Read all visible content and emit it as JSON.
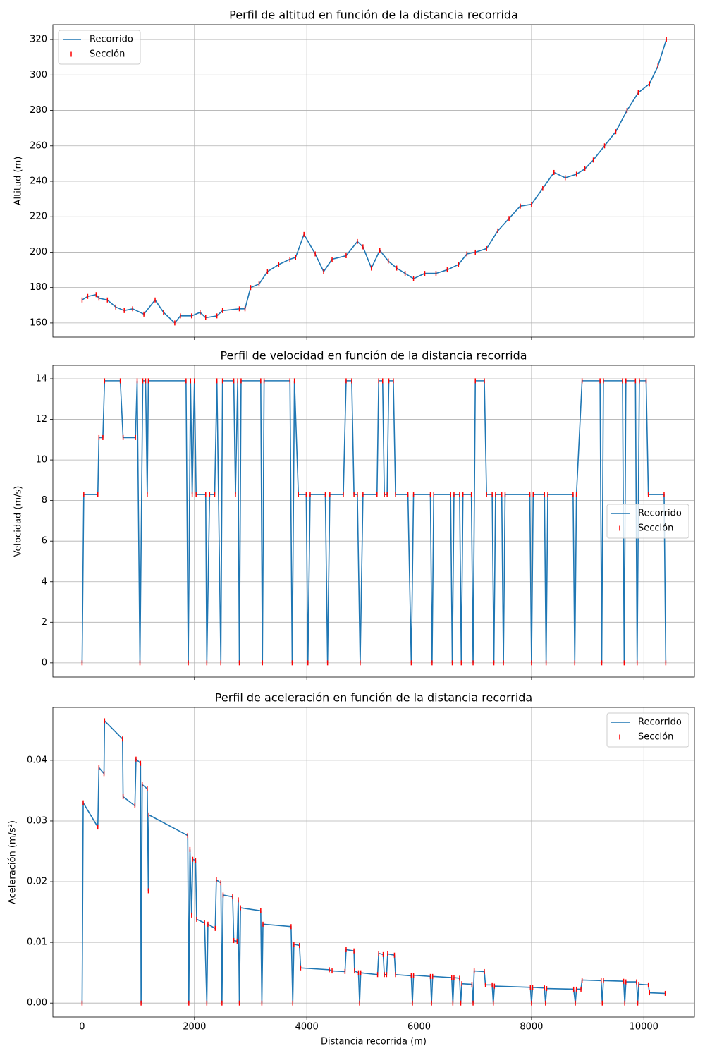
{
  "chart_data": [
    {
      "type": "line",
      "title": "Perfil de altitud en función de la distancia recorrida",
      "ylabel": "Altitud (m)",
      "x": [
        0,
        100,
        250,
        300,
        450,
        600,
        750,
        900,
        1100,
        1300,
        1450,
        1650,
        1750,
        1950,
        2100,
        2200,
        2400,
        2500,
        2800,
        2900,
        3000,
        3150,
        3300,
        3500,
        3700,
        3800,
        3950,
        4150,
        4300,
        4450,
        4700,
        4900,
        5000,
        5150,
        5300,
        5450,
        5600,
        5750,
        5900,
        6100,
        6300,
        6500,
        6700,
        6850,
        7000,
        7200,
        7400,
        7600,
        7800,
        8000,
        8200,
        8400,
        8600,
        8800,
        8950,
        9100,
        9300,
        9500,
        9700,
        9900,
        10100,
        10250,
        10400
      ],
      "series": [
        {
          "name": "Recorrido",
          "color": "#1f77b4",
          "values": [
            173,
            175,
            176,
            174,
            173,
            169,
            167,
            168,
            165,
            173,
            166,
            160,
            164,
            164,
            166,
            163,
            164,
            167,
            168,
            168,
            180,
            182,
            189,
            193,
            196,
            197,
            210,
            199,
            189,
            196,
            198,
            206,
            203,
            191,
            201,
            195,
            191,
            188,
            185,
            188,
            188,
            190,
            193,
            199,
            200,
            202,
            212,
            219,
            226,
            227,
            236,
            245,
            242,
            244,
            247,
            252,
            260,
            268,
            280,
            290,
            295,
            305,
            320
          ]
        },
        {
          "name": "Sección",
          "color": "#ff0000",
          "kind": "scatter",
          "values": [
            173,
            175,
            176,
            174,
            173,
            169,
            167,
            168,
            165,
            173,
            166,
            160,
            164,
            164,
            166,
            163,
            164,
            167,
            168,
            168,
            180,
            182,
            189,
            193,
            196,
            197,
            210,
            199,
            189,
            196,
            198,
            206,
            203,
            191,
            201,
            195,
            191,
            188,
            185,
            188,
            188,
            190,
            193,
            199,
            200,
            202,
            212,
            219,
            226,
            227,
            236,
            245,
            242,
            244,
            247,
            252,
            260,
            268,
            280,
            290,
            295,
            305,
            320
          ]
        }
      ],
      "xlim": [
        -520,
        10900
      ],
      "ylim": [
        152,
        328.4
      ],
      "xticks": [
        0,
        2000,
        4000,
        6000,
        8000,
        10000
      ],
      "yticks": [
        160,
        180,
        200,
        220,
        240,
        260,
        280,
        300,
        320
      ],
      "xticklabels": false,
      "grid": true,
      "legend": "upper left"
    },
    {
      "type": "line",
      "title": "Perfil de velocidad en función de la distancia recorrida",
      "ylabel": "Velocidad (m/s)",
      "x": [
        0,
        30,
        280,
        300,
        370,
        400,
        680,
        730,
        950,
        980,
        1030,
        1080,
        1130,
        1160,
        1180,
        1850,
        1890,
        1930,
        1960,
        2000,
        2030,
        2200,
        2220,
        2270,
        2360,
        2400,
        2470,
        2500,
        2700,
        2730,
        2770,
        2800,
        2830,
        3180,
        3210,
        3240,
        3700,
        3740,
        3780,
        3850,
        3990,
        4020,
        4060,
        4330,
        4370,
        4410,
        4650,
        4700,
        4800,
        4840,
        4900,
        4950,
        5000,
        5250,
        5280,
        5350,
        5380,
        5430,
        5460,
        5540,
        5580,
        5800,
        5860,
        5900,
        6200,
        6230,
        6260,
        6560,
        6590,
        6620,
        6720,
        6750,
        6780,
        6930,
        6960,
        7000,
        7160,
        7200,
        7300,
        7330,
        7360,
        7470,
        7500,
        7530,
        7970,
        8000,
        8030,
        8230,
        8260,
        8290,
        8740,
        8770,
        8800,
        8900,
        9220,
        9250,
        9280,
        9620,
        9650,
        9680,
        9850,
        9880,
        9920,
        10040,
        10080,
        10360,
        10390
      ],
      "series": [
        {
          "name": "Recorrido",
          "color": "#1f77b4",
          "values": [
            0,
            8.3,
            8.3,
            11.1,
            11.1,
            13.9,
            13.9,
            11.1,
            11.1,
            13.9,
            0,
            13.9,
            13.9,
            8.3,
            13.9,
            13.9,
            0,
            13.9,
            8.3,
            13.9,
            8.3,
            8.3,
            0,
            8.3,
            8.3,
            13.9,
            0,
            13.9,
            13.9,
            8.3,
            13.9,
            0,
            13.9,
            13.9,
            0,
            13.9,
            13.9,
            0,
            13.9,
            8.3,
            8.3,
            0,
            8.3,
            8.3,
            0,
            8.3,
            8.3,
            13.9,
            13.9,
            8.3,
            8.3,
            0,
            8.3,
            8.3,
            13.9,
            13.9,
            8.3,
            8.3,
            13.9,
            13.9,
            8.3,
            8.3,
            0,
            8.3,
            8.3,
            0,
            8.3,
            8.3,
            0,
            8.3,
            8.3,
            0,
            8.3,
            8.3,
            0,
            13.9,
            13.9,
            8.3,
            8.3,
            0,
            8.3,
            8.3,
            0,
            8.3,
            8.3,
            0,
            8.3,
            8.3,
            0,
            8.3,
            8.3,
            0,
            8.3,
            13.9,
            13.9,
            0,
            13.9,
            13.9,
            0,
            13.9,
            13.9,
            0,
            13.9,
            13.9,
            8.3,
            8.3,
            0
          ]
        },
        {
          "name": "Sección",
          "color": "#ff0000",
          "kind": "scatter",
          "values": [
            0,
            8.3,
            8.3,
            11.1,
            11.1,
            13.9,
            13.9,
            11.1,
            11.1,
            13.9,
            0,
            13.9,
            13.9,
            8.3,
            13.9,
            13.9,
            0,
            13.9,
            8.3,
            13.9,
            8.3,
            8.3,
            0,
            8.3,
            8.3,
            13.9,
            0,
            13.9,
            13.9,
            8.3,
            13.9,
            0,
            13.9,
            13.9,
            0,
            13.9,
            13.9,
            0,
            13.9,
            8.3,
            8.3,
            0,
            8.3,
            8.3,
            0,
            8.3,
            8.3,
            13.9,
            13.9,
            8.3,
            8.3,
            0,
            8.3,
            8.3,
            13.9,
            13.9,
            8.3,
            8.3,
            13.9,
            13.9,
            8.3,
            8.3,
            0,
            8.3,
            8.3,
            0,
            8.3,
            8.3,
            0,
            8.3,
            8.3,
            0,
            8.3,
            8.3,
            0,
            13.9,
            13.9,
            8.3,
            8.3,
            0,
            8.3,
            8.3,
            0,
            8.3,
            8.3,
            0,
            8.3,
            8.3,
            0,
            8.3,
            8.3,
            0,
            8.3,
            13.9,
            13.9,
            0,
            13.9,
            13.9,
            0,
            13.9,
            13.9,
            0,
            13.9,
            13.9,
            8.3,
            8.3,
            0
          ]
        }
      ],
      "xlim": [
        -520,
        10900
      ],
      "ylim": [
        -0.7,
        14.66
      ],
      "xticks": [
        0,
        2000,
        4000,
        6000,
        8000,
        10000
      ],
      "yticks": [
        0,
        2,
        4,
        6,
        8,
        10,
        12,
        14
      ],
      "xticklabels": false,
      "grid": true,
      "legend": "center right"
    },
    {
      "type": "line",
      "title": "Perfil de aceleración en función de la distancia recorrida",
      "ylabel": "Aceleración (m/s²)",
      "xlabel": "Distancia recorrida (m)",
      "x": [
        0,
        20,
        280,
        300,
        390,
        400,
        720,
        730,
        940,
        960,
        1040,
        1050,
        1070,
        1160,
        1180,
        1190,
        1880,
        1900,
        1920,
        1950,
        1970,
        2020,
        2040,
        2180,
        2220,
        2240,
        2370,
        2390,
        2470,
        2490,
        2510,
        2680,
        2700,
        2760,
        2780,
        2800,
        2820,
        3180,
        3200,
        3220,
        3720,
        3750,
        3770,
        3870,
        3890,
        4400,
        4450,
        4680,
        4700,
        4840,
        4850,
        4920,
        4940,
        4960,
        5260,
        5280,
        5360,
        5380,
        5420,
        5440,
        5560,
        5580,
        5860,
        5880,
        5900,
        6200,
        6220,
        6240,
        6580,
        6600,
        6620,
        6720,
        6740,
        6760,
        6940,
        6960,
        6980,
        7160,
        7180,
        7300,
        7320,
        7340,
        7980,
        8000,
        8020,
        8230,
        8250,
        8270,
        8750,
        8780,
        8800,
        8880,
        8900,
        9240,
        9260,
        9280,
        9640,
        9660,
        9680,
        9870,
        9890,
        9910,
        10080,
        10100,
        10380
      ],
      "series": [
        {
          "name": "Recorrido",
          "color": "#1f77b4",
          "values": [
            0,
            0.033,
            0.029,
            0.0388,
            0.0378,
            0.0465,
            0.0435,
            0.034,
            0.0325,
            0.0402,
            0.0395,
            0,
            0.036,
            0.0353,
            0.0185,
            0.031,
            0.0276,
            0,
            0.0253,
            0.0145,
            0.0237,
            0.0235,
            0.0138,
            0.0132,
            0,
            0.013,
            0.0123,
            0.0203,
            0.0198,
            0,
            0.0178,
            0.0175,
            0.0103,
            0.0102,
            0.017,
            0,
            0.0157,
            0.0152,
            0,
            0.013,
            0.0126,
            0,
            0.0097,
            0.0095,
            0.0058,
            0.0055,
            0.0053,
            0.0052,
            0.0088,
            0.0086,
            0.0053,
            0.005,
            0,
            0.005,
            0.0047,
            0.0082,
            0.008,
            0.0047,
            0.0047,
            0.0081,
            0.0079,
            0.0047,
            0.0045,
            0,
            0.0046,
            0.0044,
            0,
            0.0044,
            0.0042,
            0,
            0.0042,
            0.0041,
            0,
            0.0032,
            0.0031,
            0,
            0.0053,
            0.0052,
            0.003,
            0.003,
            0,
            0.0028,
            0.0026,
            0,
            0.0026,
            0.0025,
            0,
            0.0024,
            0.0023,
            0,
            0.0023,
            0.0023,
            0.0038,
            0.0037,
            0,
            0.0037,
            0.0036,
            0,
            0.0035,
            0.0035,
            0,
            0.0031,
            0.003,
            0.0017,
            0.0016
          ]
        },
        {
          "name": "Sección",
          "color": "#ff0000",
          "kind": "scatter",
          "values": [
            0,
            0.033,
            0.029,
            0.0388,
            0.0378,
            0.0465,
            0.0435,
            0.034,
            0.0325,
            0.0402,
            0.0395,
            0,
            0.036,
            0.0353,
            0.0185,
            0.031,
            0.0276,
            0,
            0.0253,
            0.0145,
            0.0237,
            0.0235,
            0.0138,
            0.0132,
            0,
            0.013,
            0.0123,
            0.0203,
            0.0198,
            0,
            0.0178,
            0.0175,
            0.0103,
            0.0102,
            0.017,
            0,
            0.0157,
            0.0152,
            0,
            0.013,
            0.0126,
            0,
            0.0097,
            0.0095,
            0.0058,
            0.0055,
            0.0053,
            0.0052,
            0.0088,
            0.0086,
            0.0053,
            0.005,
            0,
            0.005,
            0.0047,
            0.0082,
            0.008,
            0.0047,
            0.0047,
            0.0081,
            0.0079,
            0.0047,
            0.0045,
            0,
            0.0046,
            0.0044,
            0,
            0.0044,
            0.0042,
            0,
            0.0042,
            0.0041,
            0,
            0.0032,
            0.0031,
            0,
            0.0053,
            0.0052,
            0.003,
            0.003,
            0,
            0.0028,
            0.0026,
            0,
            0.0026,
            0.0025,
            0,
            0.0024,
            0.0023,
            0,
            0.0023,
            0.0023,
            0.0038,
            0.0037,
            0,
            0.0037,
            0.0036,
            0,
            0.0035,
            0.0035,
            0,
            0.0031,
            0.003,
            0.0017,
            0.0016
          ]
        }
      ],
      "xlim": [
        -520,
        10900
      ],
      "ylim": [
        -0.0023,
        0.0487
      ],
      "xticks": [
        0,
        2000,
        4000,
        6000,
        8000,
        10000
      ],
      "yticks": [
        {
          "value": 0,
          "label": "0.00"
        },
        {
          "value": 0.01,
          "label": "0.01"
        },
        {
          "value": 0.02,
          "label": "0.02"
        },
        {
          "value": 0.03,
          "label": "0.03"
        },
        {
          "value": 0.04,
          "label": "0.04"
        }
      ],
      "xticklabels": true,
      "grid": true,
      "legend": "upper right"
    }
  ]
}
